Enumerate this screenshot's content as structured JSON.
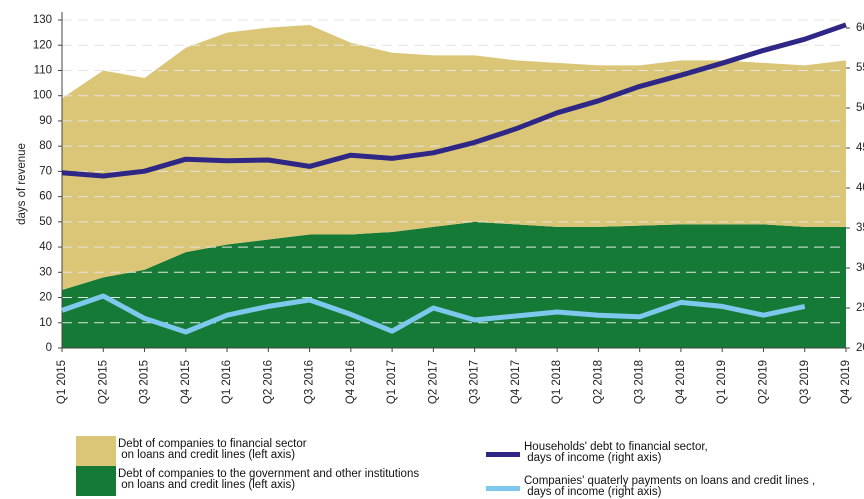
{
  "chart_data": {
    "type": "area",
    "y_label": "days of revenue",
    "categories": [
      "Q1 2015",
      "Q2 2015",
      "Q3 2015",
      "Q4 2015",
      "Q1 2016",
      "Q2 2016",
      "Q3 2016",
      "Q4 2016",
      "Q1 2017",
      "Q2 2017",
      "Q3 2017",
      "Q4 2017",
      "Q1 2018",
      "Q2 2018",
      "Q3 2018",
      "Q4 2018",
      "Q1 2019",
      "Q2 2019",
      "Q3 2019",
      "Q4 2019"
    ],
    "ylim": [
      0,
      130
    ],
    "yticks": [
      0,
      10,
      20,
      30,
      40,
      50,
      60,
      70,
      80,
      90,
      100,
      110,
      120,
      130
    ],
    "y2lim": [
      200,
      610
    ],
    "y2ticks": [
      200,
      250,
      300,
      350,
      400,
      450,
      500,
      550,
      600
    ],
    "grid": true,
    "series": [
      {
        "name": "Debt of companies to the government and other institutions\n on loans and credit lines (left axis)",
        "style": "area",
        "color": "#157a35",
        "values": [
          23,
          28,
          31,
          38,
          41,
          43,
          45,
          45,
          46,
          48,
          50,
          49,
          48,
          48,
          48.5,
          49,
          49,
          49,
          48,
          48
        ]
      },
      {
        "name": "Debt of companies to financial sector\n on loans and credit lines (left axis)",
        "style": "area",
        "color": "#dbc677",
        "values": [
          76,
          82,
          76,
          81,
          84,
          84,
          83,
          76,
          71,
          68,
          66,
          65,
          65,
          64,
          63.5,
          65,
          65,
          64,
          64,
          66
        ]
      },
      {
        "name": "Households' debt to financial sector,\n days of income (right axis)",
        "style": "line",
        "axis": "y2",
        "color": "#2e2786",
        "values": [
          419,
          415,
          421,
          436,
          434,
          435,
          427,
          441,
          437,
          444,
          457,
          474,
          494,
          509,
          527,
          541,
          556,
          572,
          586,
          604
        ]
      },
      {
        "name": "Companies' quaterly payments on loans and credit lines ,\n days of income (right axis)",
        "style": "line",
        "axis": "y2",
        "color": "#7dc8ec",
        "values": [
          247,
          265,
          237,
          220,
          241,
          252,
          260,
          242,
          221,
          250,
          235,
          240,
          245,
          241,
          239,
          257,
          252,
          241,
          252,
          null
        ]
      }
    ]
  }
}
